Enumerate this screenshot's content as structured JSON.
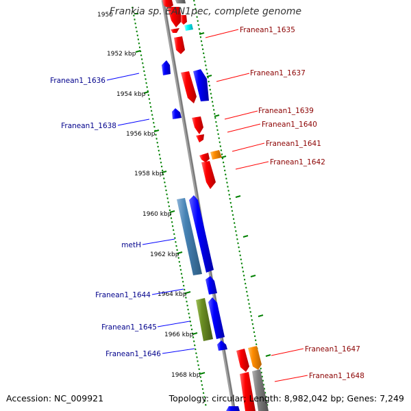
{
  "title": "Frankia sp. EAN1pec, complete genome",
  "footer": {
    "accession": "Accession: NC_009921",
    "topology": "Topology: circular; Length: 8,982,042 bp; Genes: 7,249"
  },
  "ruler": [
    "1950",
    "1952 kbp",
    "1954 kbp",
    "1956 kbp",
    "1958 kbp",
    "1960 kbp",
    "1962 kbp",
    "1964 kbp",
    "1966 kbp",
    "1968 kbp"
  ],
  "labels_left": [
    "Franean1_1636",
    "Franean1_1638",
    "metH",
    "Franean1_1644",
    "Franean1_1645",
    "Franean1_1646"
  ],
  "labels_right": [
    "Franean1_1635",
    "Franean1_1637",
    "Franean1_1639",
    "Franean1_1640",
    "Franean1_1641",
    "Franean1_1642",
    "Franean1_1647",
    "Franean1_1648"
  ],
  "colors": {
    "red": "#ff0000",
    "blue": "#0000ff",
    "steelblue": "#4682b4",
    "olive": "#6b8e23",
    "orange": "#ff8c00",
    "gray": "#808080",
    "cyan": "#00ffff",
    "label_left": "#00008b",
    "label_right": "#8b0000",
    "dash": "#008000",
    "backbone": "#808080"
  }
}
